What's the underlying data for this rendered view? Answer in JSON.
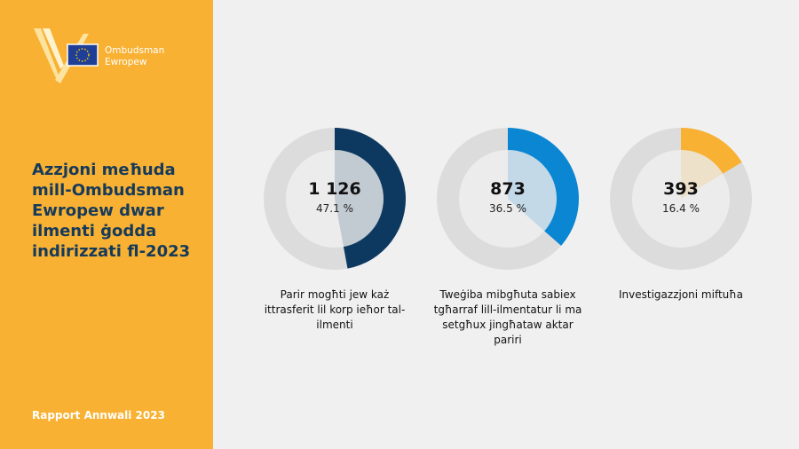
{
  "logo": {
    "line1": "Ombudsman",
    "line2": "Ewropew"
  },
  "title": "Azzjoni meħuda mill-Ombudsman Ewropew dwar ilmenti ġodda indirizzati fl-2023",
  "footer": "Rapport Annwali 2023",
  "chart_data": {
    "type": "donut",
    "categories": [
      "Parir mogħti jew każ ittrasferit lil korp ieħor tal-ilmenti",
      "Tweġiba mibgħuta sabiex tgħarraf lill-ilmentatur li ma setgħux jingħataw aktar pariri",
      "Investigazzjoni miftuħa"
    ],
    "values": [
      1126,
      873,
      393
    ],
    "value_labels": [
      "1 126",
      "873",
      "393"
    ],
    "shares": [
      47.1,
      36.5,
      16.4
    ],
    "share_labels": [
      "47.1 %",
      "36.5 %",
      "16.4 %"
    ],
    "colors": [
      "#0d3961",
      "#0a86d2",
      "#f8b133"
    ]
  }
}
